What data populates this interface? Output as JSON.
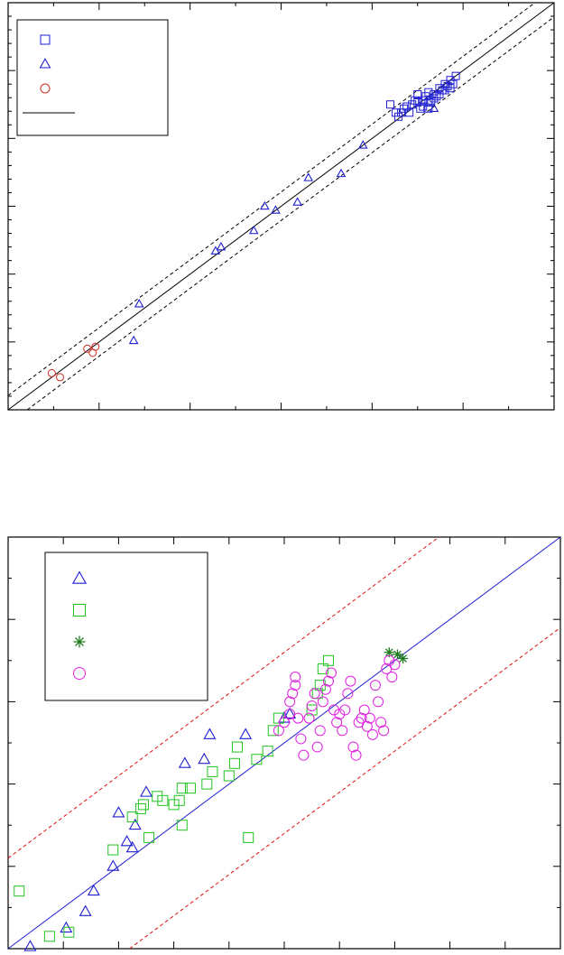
{
  "chart_data": [
    {
      "type": "scatter",
      "title": "",
      "xlabel": "",
      "ylabel": "",
      "xlim": [
        0,
        1
      ],
      "ylim": [
        0,
        1
      ],
      "grid": false,
      "legend_position": "top-left",
      "legend": [
        {
          "name": "",
          "marker": "square",
          "color": "#1f1fd1"
        },
        {
          "name": "",
          "marker": "triangle",
          "color": "#1f1fd1"
        },
        {
          "name": "",
          "marker": "circle",
          "color": "#d12a1f"
        },
        {
          "name": "",
          "marker": "line",
          "color": "#000000"
        }
      ],
      "reference_lines": [
        {
          "style": "solid",
          "color": "#000000",
          "slope": 1,
          "intercept": 0
        },
        {
          "style": "dashed",
          "color": "#000000",
          "slope": 1,
          "intercept": 0.035
        },
        {
          "style": "dashed",
          "color": "#000000",
          "slope": 1,
          "intercept": -0.035
        }
      ],
      "series": [
        {
          "marker": "square",
          "color": "#1f1fd1",
          "points": [
            [
              0.7,
              0.75
            ],
            [
              0.71,
              0.73
            ],
            [
              0.715,
              0.72
            ],
            [
              0.72,
              0.73
            ],
            [
              0.725,
              0.74
            ],
            [
              0.73,
              0.745
            ],
            [
              0.735,
              0.73
            ],
            [
              0.74,
              0.75
            ],
            [
              0.745,
              0.76
            ],
            [
              0.75,
              0.755
            ],
            [
              0.755,
              0.74
            ],
            [
              0.76,
              0.76
            ],
            [
              0.765,
              0.77
            ],
            [
              0.77,
              0.78
            ],
            [
              0.775,
              0.76
            ],
            [
              0.78,
              0.775
            ],
            [
              0.785,
              0.77
            ],
            [
              0.79,
              0.79
            ],
            [
              0.795,
              0.785
            ],
            [
              0.8,
              0.8
            ],
            [
              0.805,
              0.795
            ],
            [
              0.81,
              0.81
            ],
            [
              0.815,
              0.8
            ],
            [
              0.82,
              0.82
            ],
            [
              0.75,
              0.775
            ],
            [
              0.76,
              0.745
            ],
            [
              0.77,
              0.755
            ],
            [
              0.78,
              0.765
            ],
            [
              0.79,
              0.775
            ],
            [
              0.8,
              0.785
            ],
            [
              0.81,
              0.79
            ],
            [
              0.77,
              0.74
            ]
          ]
        },
        {
          "marker": "triangle",
          "color": "#1f1fd1",
          "points": [
            [
              0.24,
              0.26
            ],
            [
              0.23,
              0.17
            ],
            [
              0.38,
              0.39
            ],
            [
              0.39,
              0.4
            ],
            [
              0.45,
              0.44
            ],
            [
              0.47,
              0.5
            ],
            [
              0.49,
              0.49
            ],
            [
              0.53,
              0.51
            ],
            [
              0.55,
              0.57
            ],
            [
              0.61,
              0.58
            ],
            [
              0.65,
              0.65
            ],
            [
              0.78,
              0.74
            ]
          ]
        },
        {
          "marker": "circle",
          "color": "#d12a1f",
          "points": [
            [
              0.08,
              0.09
            ],
            [
              0.095,
              0.08
            ],
            [
              0.145,
              0.15
            ],
            [
              0.155,
              0.14
            ],
            [
              0.16,
              0.155
            ]
          ]
        }
      ]
    },
    {
      "type": "scatter",
      "title": "",
      "xlabel": "",
      "ylabel": "",
      "xlim": [
        0,
        1
      ],
      "ylim": [
        0,
        1
      ],
      "grid": false,
      "legend_position": "top-left",
      "legend": [
        {
          "name": "",
          "marker": "triangle",
          "color": "#1f1fd1"
        },
        {
          "name": "",
          "marker": "square",
          "color": "#22c422"
        },
        {
          "name": "",
          "marker": "asterisk",
          "color": "#1f7a1f"
        },
        {
          "name": "",
          "marker": "circle",
          "color": "#e020e0"
        }
      ],
      "reference_lines": [
        {
          "style": "solid",
          "color": "#1f1fd1",
          "slope": 1,
          "intercept": 0
        },
        {
          "style": "dashed",
          "color": "#e01010",
          "slope": 1,
          "intercept": 0.22
        },
        {
          "style": "dashed",
          "color": "#e01010",
          "slope": 1,
          "intercept": -0.22
        }
      ],
      "series": [
        {
          "marker": "triangle",
          "color": "#1f1fd1",
          "points": [
            [
              0.04,
              0.005
            ],
            [
              0.105,
              0.05
            ],
            [
              0.14,
              0.09
            ],
            [
              0.155,
              0.14
            ],
            [
              0.19,
              0.2
            ],
            [
              0.215,
              0.26
            ],
            [
              0.225,
              0.245
            ],
            [
              0.2,
              0.33
            ],
            [
              0.23,
              0.3
            ],
            [
              0.25,
              0.38
            ],
            [
              0.32,
              0.45
            ],
            [
              0.355,
              0.46
            ],
            [
              0.365,
              0.52
            ],
            [
              0.43,
              0.52
            ],
            [
              0.5,
              0.56
            ],
            [
              0.51,
              0.57
            ]
          ]
        },
        {
          "marker": "square",
          "color": "#22c422",
          "points": [
            [
              0.02,
              0.14
            ],
            [
              0.075,
              0.03
            ],
            [
              0.11,
              0.04
            ],
            [
              0.19,
              0.24
            ],
            [
              0.225,
              0.32
            ],
            [
              0.24,
              0.34
            ],
            [
              0.245,
              0.35
            ],
            [
              0.27,
              0.37
            ],
            [
              0.3,
              0.35
            ],
            [
              0.31,
              0.36
            ],
            [
              0.315,
              0.39
            ],
            [
              0.33,
              0.39
            ],
            [
              0.36,
              0.4
            ],
            [
              0.37,
              0.43
            ],
            [
              0.4,
              0.42
            ],
            [
              0.41,
              0.45
            ],
            [
              0.415,
              0.49
            ],
            [
              0.45,
              0.46
            ],
            [
              0.47,
              0.48
            ],
            [
              0.48,
              0.53
            ],
            [
              0.49,
              0.56
            ],
            [
              0.55,
              0.58
            ],
            [
              0.56,
              0.62
            ],
            [
              0.565,
              0.64
            ],
            [
              0.57,
              0.68
            ],
            [
              0.255,
              0.27
            ],
            [
              0.28,
              0.36
            ],
            [
              0.435,
              0.27
            ],
            [
              0.315,
              0.3
            ],
            [
              0.58,
              0.7
            ]
          ]
        },
        {
          "marker": "asterisk",
          "color": "#1f7a1f",
          "points": [
            [
              0.69,
              0.72
            ],
            [
              0.705,
              0.715
            ],
            [
              0.715,
              0.705
            ]
          ]
        },
        {
          "marker": "circle",
          "color": "#e020e0",
          "points": [
            [
              0.49,
              0.53
            ],
            [
              0.5,
              0.55
            ],
            [
              0.51,
              0.57
            ],
            [
              0.51,
              0.6
            ],
            [
              0.515,
              0.62
            ],
            [
              0.52,
              0.64
            ],
            [
              0.52,
              0.66
            ],
            [
              0.525,
              0.56
            ],
            [
              0.53,
              0.51
            ],
            [
              0.535,
              0.47
            ],
            [
              0.545,
              0.56
            ],
            [
              0.55,
              0.59
            ],
            [
              0.555,
              0.62
            ],
            [
              0.56,
              0.49
            ],
            [
              0.565,
              0.53
            ],
            [
              0.57,
              0.6
            ],
            [
              0.575,
              0.63
            ],
            [
              0.58,
              0.65
            ],
            [
              0.585,
              0.67
            ],
            [
              0.59,
              0.58
            ],
            [
              0.595,
              0.55
            ],
            [
              0.6,
              0.57
            ],
            [
              0.605,
              0.53
            ],
            [
              0.61,
              0.58
            ],
            [
              0.615,
              0.62
            ],
            [
              0.62,
              0.65
            ],
            [
              0.625,
              0.49
            ],
            [
              0.63,
              0.47
            ],
            [
              0.635,
              0.55
            ],
            [
              0.64,
              0.56
            ],
            [
              0.645,
              0.58
            ],
            [
              0.65,
              0.54
            ],
            [
              0.655,
              0.56
            ],
            [
              0.66,
              0.52
            ],
            [
              0.665,
              0.64
            ],
            [
              0.67,
              0.6
            ],
            [
              0.675,
              0.55
            ],
            [
              0.68,
              0.53
            ],
            [
              0.685,
              0.68
            ],
            [
              0.69,
              0.7
            ],
            [
              0.695,
              0.66
            ],
            [
              0.7,
              0.69
            ]
          ]
        }
      ]
    }
  ]
}
